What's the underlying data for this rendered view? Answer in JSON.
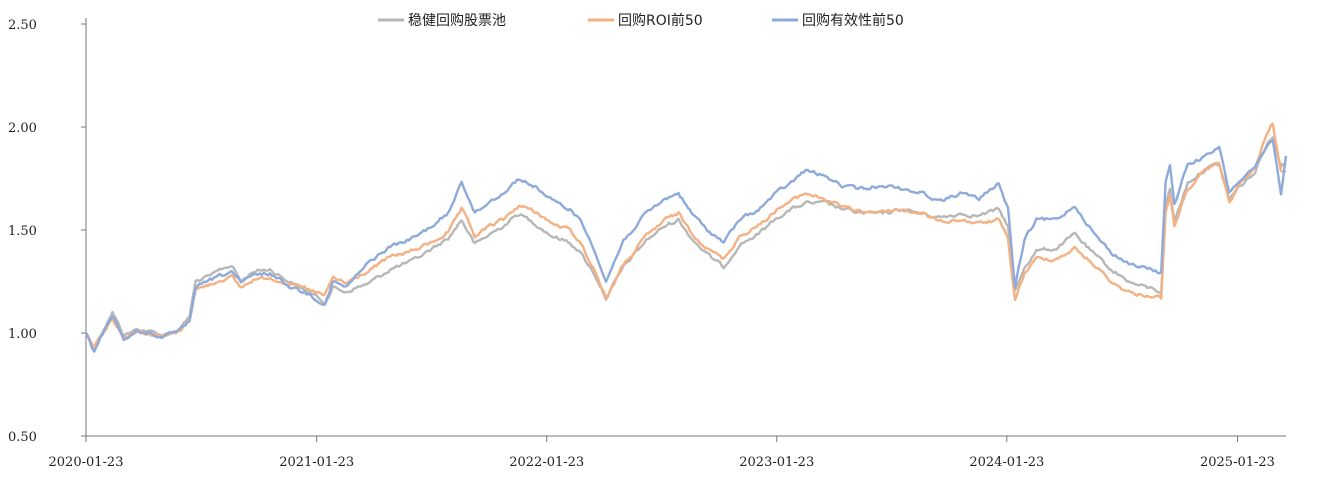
{
  "chart_data": {
    "type": "line",
    "title": "",
    "xlabel": "",
    "ylabel": "",
    "ylim": [
      0.5,
      2.5
    ],
    "yticks": [
      "0.50",
      "1.00",
      "1.50",
      "2.00",
      "2.50"
    ],
    "xlim": [
      "2020-01-23",
      "2025-04-10"
    ],
    "xticks": [
      "2020-01-23",
      "2021-01-23",
      "2022-01-23",
      "2023-01-23",
      "2024-01-23",
      "2025-01-23"
    ],
    "grid": false,
    "legend_position": "top",
    "series": [
      {
        "name": "稳健回购股票池",
        "color": "#b7b7b7",
        "points": [
          [
            "2020-01-23",
            1.0
          ],
          [
            "2020-02-05",
            0.93
          ],
          [
            "2020-02-25",
            1.05
          ],
          [
            "2020-03-05",
            1.1
          ],
          [
            "2020-03-23",
            0.99
          ],
          [
            "2020-04-15",
            1.02
          ],
          [
            "2020-05-25",
            0.99
          ],
          [
            "2020-06-20",
            1.02
          ],
          [
            "2020-07-05",
            1.08
          ],
          [
            "2020-07-15",
            1.25
          ],
          [
            "2020-08-10",
            1.28
          ],
          [
            "2020-08-25",
            1.31
          ],
          [
            "2020-09-10",
            1.33
          ],
          [
            "2020-09-25",
            1.25
          ],
          [
            "2020-10-15",
            1.3
          ],
          [
            "2020-11-10",
            1.31
          ],
          [
            "2020-12-10",
            1.25
          ],
          [
            "2021-01-10",
            1.2
          ],
          [
            "2021-02-05",
            1.15
          ],
          [
            "2021-02-18",
            1.22
          ],
          [
            "2021-03-10",
            1.2
          ],
          [
            "2021-04-15",
            1.24
          ],
          [
            "2021-05-20",
            1.31
          ],
          [
            "2021-06-25",
            1.35
          ],
          [
            "2021-07-25",
            1.41
          ],
          [
            "2021-08-20",
            1.46
          ],
          [
            "2021-09-10",
            1.55
          ],
          [
            "2021-10-01",
            1.43
          ],
          [
            "2021-10-25",
            1.48
          ],
          [
            "2021-11-15",
            1.52
          ],
          [
            "2021-12-10",
            1.58
          ],
          [
            "2022-01-10",
            1.52
          ],
          [
            "2022-02-01",
            1.47
          ],
          [
            "2022-03-01",
            1.44
          ],
          [
            "2022-03-15",
            1.4
          ],
          [
            "2022-04-10",
            1.28
          ],
          [
            "2022-04-27",
            1.17
          ],
          [
            "2022-05-25",
            1.32
          ],
          [
            "2022-06-30",
            1.45
          ],
          [
            "2022-07-30",
            1.52
          ],
          [
            "2022-08-20",
            1.55
          ],
          [
            "2022-09-10",
            1.46
          ],
          [
            "2022-10-05",
            1.38
          ],
          [
            "2022-10-31",
            1.32
          ],
          [
            "2022-11-25",
            1.43
          ],
          [
            "2022-12-25",
            1.48
          ],
          [
            "2023-01-23",
            1.56
          ],
          [
            "2023-02-15",
            1.6
          ],
          [
            "2023-03-10",
            1.63
          ],
          [
            "2023-04-10",
            1.63
          ],
          [
            "2023-05-10",
            1.6
          ],
          [
            "2023-06-10",
            1.58
          ],
          [
            "2023-07-10",
            1.58
          ],
          [
            "2023-08-10",
            1.6
          ],
          [
            "2023-09-10",
            1.58
          ],
          [
            "2023-10-10",
            1.56
          ],
          [
            "2023-11-10",
            1.58
          ],
          [
            "2023-12-10",
            1.57
          ],
          [
            "2024-01-10",
            1.6
          ],
          [
            "2024-01-25",
            1.52
          ],
          [
            "2024-02-05",
            1.2
          ],
          [
            "2024-02-20",
            1.32
          ],
          [
            "2024-03-10",
            1.4
          ],
          [
            "2024-04-10",
            1.41
          ],
          [
            "2024-05-10",
            1.48
          ],
          [
            "2024-06-10",
            1.38
          ],
          [
            "2024-07-10",
            1.3
          ],
          [
            "2024-08-10",
            1.24
          ],
          [
            "2024-09-15",
            1.21
          ],
          [
            "2024-09-24",
            1.2
          ],
          [
            "2024-10-01",
            1.62
          ],
          [
            "2024-10-08",
            1.7
          ],
          [
            "2024-10-15",
            1.54
          ],
          [
            "2024-11-05",
            1.73
          ],
          [
            "2024-12-05",
            1.8
          ],
          [
            "2024-12-25",
            1.82
          ],
          [
            "2025-01-10",
            1.65
          ],
          [
            "2025-01-23",
            1.7
          ],
          [
            "2025-02-20",
            1.78
          ],
          [
            "2025-03-10",
            1.92
          ],
          [
            "2025-03-20",
            1.95
          ],
          [
            "2025-04-02",
            1.82
          ],
          [
            "2025-04-10",
            1.82
          ]
        ]
      },
      {
        "name": "回购ROI前50",
        "color": "#f4b183",
        "points": [
          [
            "2020-01-23",
            1.0
          ],
          [
            "2020-02-05",
            0.94
          ],
          [
            "2020-02-25",
            1.03
          ],
          [
            "2020-03-05",
            1.07
          ],
          [
            "2020-03-23",
            0.98
          ],
          [
            "2020-04-15",
            1.01
          ],
          [
            "2020-05-25",
            0.98
          ],
          [
            "2020-06-20",
            1.01
          ],
          [
            "2020-07-05",
            1.07
          ],
          [
            "2020-07-15",
            1.21
          ],
          [
            "2020-08-10",
            1.24
          ],
          [
            "2020-08-25",
            1.26
          ],
          [
            "2020-09-10",
            1.27
          ],
          [
            "2020-09-25",
            1.22
          ],
          [
            "2020-10-15",
            1.26
          ],
          [
            "2020-11-10",
            1.27
          ],
          [
            "2020-12-10",
            1.24
          ],
          [
            "2021-01-10",
            1.21
          ],
          [
            "2021-02-05",
            1.18
          ],
          [
            "2021-02-18",
            1.27
          ],
          [
            "2021-03-10",
            1.24
          ],
          [
            "2021-04-15",
            1.3
          ],
          [
            "2021-05-20",
            1.37
          ],
          [
            "2021-06-25",
            1.4
          ],
          [
            "2021-07-25",
            1.44
          ],
          [
            "2021-08-20",
            1.49
          ],
          [
            "2021-09-10",
            1.6
          ],
          [
            "2021-10-01",
            1.47
          ],
          [
            "2021-10-25",
            1.52
          ],
          [
            "2021-11-15",
            1.55
          ],
          [
            "2021-12-10",
            1.62
          ],
          [
            "2022-01-10",
            1.58
          ],
          [
            "2022-02-01",
            1.53
          ],
          [
            "2022-03-01",
            1.5
          ],
          [
            "2022-03-15",
            1.45
          ],
          [
            "2022-04-10",
            1.3
          ],
          [
            "2022-04-27",
            1.17
          ],
          [
            "2022-05-25",
            1.33
          ],
          [
            "2022-06-30",
            1.47
          ],
          [
            "2022-07-30",
            1.55
          ],
          [
            "2022-08-20",
            1.58
          ],
          [
            "2022-09-10",
            1.49
          ],
          [
            "2022-10-05",
            1.41
          ],
          [
            "2022-10-31",
            1.36
          ],
          [
            "2022-11-25",
            1.47
          ],
          [
            "2022-12-25",
            1.52
          ],
          [
            "2023-01-23",
            1.6
          ],
          [
            "2023-02-15",
            1.64
          ],
          [
            "2023-03-10",
            1.68
          ],
          [
            "2023-04-10",
            1.65
          ],
          [
            "2023-05-10",
            1.61
          ],
          [
            "2023-06-10",
            1.59
          ],
          [
            "2023-07-10",
            1.59
          ],
          [
            "2023-08-10",
            1.6
          ],
          [
            "2023-09-10",
            1.58
          ],
          [
            "2023-10-10",
            1.54
          ],
          [
            "2023-11-10",
            1.55
          ],
          [
            "2023-12-10",
            1.53
          ],
          [
            "2024-01-10",
            1.55
          ],
          [
            "2024-01-25",
            1.45
          ],
          [
            "2024-02-05",
            1.16
          ],
          [
            "2024-02-20",
            1.29
          ],
          [
            "2024-03-10",
            1.36
          ],
          [
            "2024-04-10",
            1.36
          ],
          [
            "2024-05-10",
            1.41
          ],
          [
            "2024-06-10",
            1.33
          ],
          [
            "2024-07-10",
            1.24
          ],
          [
            "2024-08-10",
            1.19
          ],
          [
            "2024-09-15",
            1.18
          ],
          [
            "2024-09-24",
            1.17
          ],
          [
            "2024-10-01",
            1.58
          ],
          [
            "2024-10-08",
            1.66
          ],
          [
            "2024-10-15",
            1.52
          ],
          [
            "2024-11-05",
            1.7
          ],
          [
            "2024-12-05",
            1.79
          ],
          [
            "2024-12-25",
            1.83
          ],
          [
            "2025-01-10",
            1.63
          ],
          [
            "2025-01-23",
            1.71
          ],
          [
            "2025-02-20",
            1.8
          ],
          [
            "2025-03-10",
            1.96
          ],
          [
            "2025-03-20",
            2.02
          ],
          [
            "2025-04-02",
            1.78
          ],
          [
            "2025-04-10",
            1.78
          ]
        ]
      },
      {
        "name": "回购有效性前50",
        "color": "#8eaadb",
        "points": [
          [
            "2020-01-23",
            1.0
          ],
          [
            "2020-02-05",
            0.91
          ],
          [
            "2020-02-25",
            1.04
          ],
          [
            "2020-03-05",
            1.09
          ],
          [
            "2020-03-23",
            0.97
          ],
          [
            "2020-04-15",
            1.01
          ],
          [
            "2020-05-25",
            0.98
          ],
          [
            "2020-06-20",
            1.01
          ],
          [
            "2020-07-05",
            1.06
          ],
          [
            "2020-07-15",
            1.22
          ],
          [
            "2020-08-10",
            1.26
          ],
          [
            "2020-08-25",
            1.28
          ],
          [
            "2020-09-10",
            1.3
          ],
          [
            "2020-09-25",
            1.24
          ],
          [
            "2020-10-15",
            1.28
          ],
          [
            "2020-11-10",
            1.29
          ],
          [
            "2020-12-10",
            1.23
          ],
          [
            "2021-01-10",
            1.19
          ],
          [
            "2021-02-05",
            1.14
          ],
          [
            "2021-02-18",
            1.25
          ],
          [
            "2021-03-10",
            1.22
          ],
          [
            "2021-04-15",
            1.34
          ],
          [
            "2021-05-20",
            1.42
          ],
          [
            "2021-06-25",
            1.46
          ],
          [
            "2021-07-25",
            1.52
          ],
          [
            "2021-08-20",
            1.58
          ],
          [
            "2021-09-10",
            1.74
          ],
          [
            "2021-10-01",
            1.58
          ],
          [
            "2021-10-25",
            1.64
          ],
          [
            "2021-11-15",
            1.68
          ],
          [
            "2021-12-10",
            1.75
          ],
          [
            "2022-01-10",
            1.7
          ],
          [
            "2022-02-01",
            1.64
          ],
          [
            "2022-03-01",
            1.6
          ],
          [
            "2022-03-15",
            1.56
          ],
          [
            "2022-04-10",
            1.4
          ],
          [
            "2022-04-27",
            1.25
          ],
          [
            "2022-05-25",
            1.45
          ],
          [
            "2022-06-30",
            1.58
          ],
          [
            "2022-07-30",
            1.65
          ],
          [
            "2022-08-20",
            1.68
          ],
          [
            "2022-09-10",
            1.58
          ],
          [
            "2022-10-05",
            1.5
          ],
          [
            "2022-10-31",
            1.44
          ],
          [
            "2022-11-25",
            1.55
          ],
          [
            "2022-12-25",
            1.6
          ],
          [
            "2023-01-23",
            1.68
          ],
          [
            "2023-02-15",
            1.73
          ],
          [
            "2023-03-10",
            1.79
          ],
          [
            "2023-04-10",
            1.76
          ],
          [
            "2023-05-10",
            1.71
          ],
          [
            "2023-06-10",
            1.7
          ],
          [
            "2023-07-10",
            1.72
          ],
          [
            "2023-08-10",
            1.7
          ],
          [
            "2023-09-10",
            1.68
          ],
          [
            "2023-10-10",
            1.64
          ],
          [
            "2023-11-10",
            1.68
          ],
          [
            "2023-12-10",
            1.65
          ],
          [
            "2024-01-10",
            1.73
          ],
          [
            "2024-01-25",
            1.6
          ],
          [
            "2024-02-05",
            1.22
          ],
          [
            "2024-02-20",
            1.45
          ],
          [
            "2024-03-10",
            1.55
          ],
          [
            "2024-04-10",
            1.55
          ],
          [
            "2024-05-10",
            1.62
          ],
          [
            "2024-06-10",
            1.48
          ],
          [
            "2024-07-10",
            1.38
          ],
          [
            "2024-08-10",
            1.33
          ],
          [
            "2024-09-15",
            1.3
          ],
          [
            "2024-09-24",
            1.29
          ],
          [
            "2024-10-01",
            1.74
          ],
          [
            "2024-10-08",
            1.82
          ],
          [
            "2024-10-15",
            1.62
          ],
          [
            "2024-11-05",
            1.82
          ],
          [
            "2024-12-05",
            1.86
          ],
          [
            "2024-12-25",
            1.9
          ],
          [
            "2025-01-10",
            1.68
          ],
          [
            "2025-01-23",
            1.73
          ],
          [
            "2025-02-20",
            1.8
          ],
          [
            "2025-03-10",
            1.9
          ],
          [
            "2025-03-20",
            1.93
          ],
          [
            "2025-04-02",
            1.68
          ],
          [
            "2025-04-10",
            1.86
          ]
        ]
      }
    ]
  }
}
